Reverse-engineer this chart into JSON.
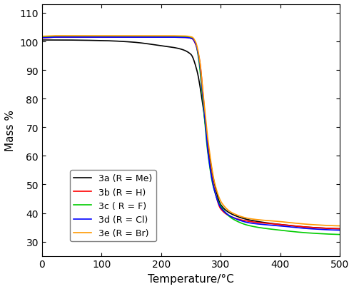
{
  "title": "",
  "xlabel": "Temperature/°C",
  "ylabel": "Mass %",
  "xlim": [
    0,
    500
  ],
  "ylim": [
    25,
    113
  ],
  "yticks": [
    30,
    40,
    50,
    60,
    70,
    80,
    90,
    100,
    110
  ],
  "xticks": [
    0,
    100,
    200,
    300,
    400,
    500
  ],
  "series": [
    {
      "label": "3a (R = Me)",
      "color": "#000000",
      "x_pts": [
        0,
        25,
        100,
        150,
        200,
        230,
        250,
        260,
        270,
        280,
        290,
        300,
        320,
        350,
        400,
        450,
        500
      ],
      "y_pts": [
        100.5,
        100.5,
        100.3,
        99.8,
        98.5,
        97.5,
        95.5,
        90.0,
        78.0,
        62.0,
        50.0,
        43.0,
        39.5,
        37.5,
        36.0,
        35.0,
        34.5
      ]
    },
    {
      "label": "3b (R = H)",
      "color": "#ff0000",
      "x_pts": [
        0,
        25,
        100,
        200,
        240,
        252,
        258,
        265,
        272,
        280,
        290,
        300,
        320,
        350,
        400,
        450,
        500
      ],
      "y_pts": [
        101.2,
        101.5,
        101.5,
        101.5,
        101.4,
        101.0,
        99.0,
        93.0,
        78.0,
        60.0,
        48.0,
        41.5,
        38.5,
        37.0,
        36.0,
        35.0,
        34.5
      ]
    },
    {
      "label": "3c ( R = F)",
      "color": "#00cc00",
      "x_pts": [
        0,
        25,
        100,
        200,
        240,
        252,
        258,
        263,
        270,
        278,
        288,
        300,
        320,
        350,
        400,
        450,
        500
      ],
      "y_pts": [
        101.5,
        101.8,
        101.8,
        101.8,
        101.7,
        101.3,
        99.5,
        94.0,
        80.0,
        62.0,
        49.0,
        42.5,
        38.0,
        35.5,
        34.0,
        33.0,
        32.5
      ]
    },
    {
      "label": "3d (R = Cl)",
      "color": "#0000ff",
      "x_pts": [
        0,
        25,
        100,
        200,
        240,
        252,
        258,
        264,
        271,
        279,
        289,
        300,
        320,
        350,
        400,
        450,
        500
      ],
      "y_pts": [
        101.3,
        101.5,
        101.5,
        101.5,
        101.4,
        101.0,
        99.2,
        93.5,
        79.0,
        61.0,
        48.5,
        42.0,
        38.5,
        36.5,
        35.5,
        34.5,
        34.0
      ]
    },
    {
      "label": "3e (R = Br)",
      "color": "#ff9900",
      "x_pts": [
        0,
        25,
        100,
        200,
        240,
        252,
        258,
        264,
        271,
        280,
        290,
        302,
        320,
        350,
        400,
        450,
        500
      ],
      "y_pts": [
        101.8,
        102.0,
        102.0,
        102.0,
        101.9,
        101.5,
        99.8,
        94.5,
        81.0,
        63.5,
        50.5,
        43.5,
        40.0,
        38.0,
        37.0,
        36.0,
        35.5
      ]
    }
  ],
  "figsize": [
    4.96,
    4.06
  ],
  "dpi": 100,
  "linewidth": 1.2
}
